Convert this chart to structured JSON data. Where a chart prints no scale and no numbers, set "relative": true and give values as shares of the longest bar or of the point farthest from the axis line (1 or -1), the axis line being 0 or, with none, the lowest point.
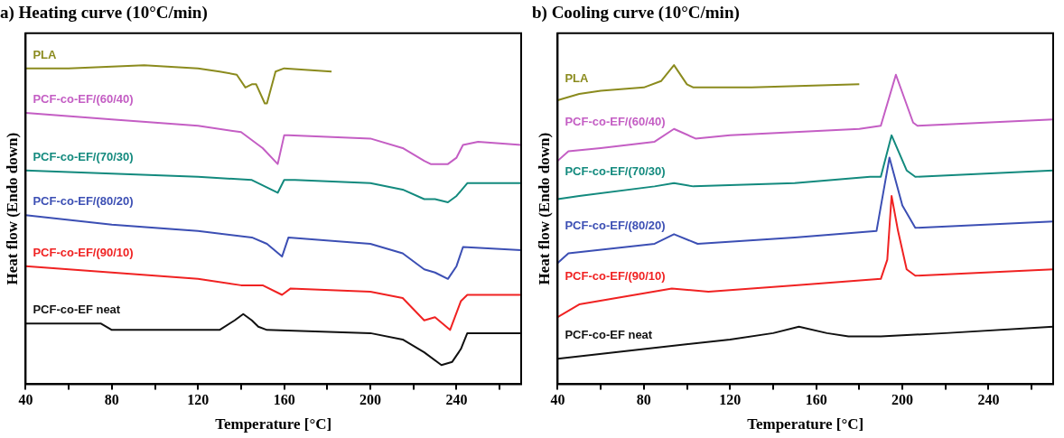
{
  "chart_data": [
    {
      "type": "line",
      "title": "a) Heating curve (10°C/min)",
      "xlabel": "Temperature [°C]",
      "ylabel": "Heat flow (Endo down)",
      "relative": true,
      "marker": "none",
      "line_style": "solid",
      "legend": false,
      "grid": false,
      "tick_labels": "x",
      "xlim": [
        40,
        270
      ],
      "xticks": [
        40,
        {
          "value": 60,
          "label": null
        },
        80,
        {
          "value": 100,
          "label": null
        },
        120,
        {
          "value": 140,
          "label": null
        },
        160,
        {
          "value": 180,
          "label": null
        },
        200,
        {
          "value": 220,
          "label": null
        },
        240,
        {
          "value": 260,
          "label": null
        }
      ],
      "series": [
        {
          "name": "PLA",
          "color": "#8b8b1e",
          "x": [
            40,
            55,
            60,
            95,
            120,
            130,
            138,
            142,
            145,
            147,
            151,
            152,
            156,
            160,
            182
          ],
          "values": [
            0.99,
            0.99,
            0.99,
            1,
            0.99,
            0.98,
            0.97,
            0.93,
            0.94,
            0.94,
            0.88,
            0.88,
            0.98,
            0.99,
            0.98
          ]
        },
        {
          "name": "PCF-co-EF/(60/40)",
          "color": "#c45ec4",
          "x": [
            40,
            80,
            120,
            140,
            150,
            157,
            160,
            162,
            200,
            215,
            225,
            228,
            232,
            236,
            240,
            243,
            250,
            270
          ],
          "values": [
            0.85,
            0.83,
            0.81,
            0.79,
            0.74,
            0.69,
            0.78,
            0.78,
            0.77,
            0.74,
            0.7,
            0.69,
            0.69,
            0.69,
            0.71,
            0.75,
            0.76,
            0.75
          ]
        },
        {
          "name": "PCF-co-EF/(70/30)",
          "color": "#138a7e",
          "x": [
            40,
            80,
            120,
            145,
            157,
            160,
            165,
            200,
            215,
            225,
            230,
            236,
            240,
            245,
            270
          ],
          "values": [
            0.67,
            0.66,
            0.65,
            0.64,
            0.6,
            0.64,
            0.64,
            0.63,
            0.61,
            0.58,
            0.58,
            0.57,
            0.59,
            0.63,
            0.63
          ]
        },
        {
          "name": "PCF-co-EF/(80/20)",
          "color": "#3c4fb4",
          "x": [
            40,
            80,
            120,
            145,
            152,
            159,
            162,
            200,
            215,
            225,
            230,
            236,
            240,
            243,
            270
          ],
          "values": [
            0.53,
            0.5,
            0.48,
            0.46,
            0.44,
            0.4,
            0.46,
            0.44,
            0.41,
            0.36,
            0.35,
            0.33,
            0.37,
            0.43,
            0.42
          ]
        },
        {
          "name": "PCF-co-EF/(90/10)",
          "color": "#f02222",
          "x": [
            40,
            80,
            120,
            140,
            150,
            159,
            163,
            200,
            215,
            225,
            230,
            237,
            242,
            245,
            270
          ],
          "values": [
            0.37,
            0.35,
            0.33,
            0.31,
            0.31,
            0.28,
            0.3,
            0.29,
            0.27,
            0.2,
            0.21,
            0.17,
            0.26,
            0.28,
            0.28
          ]
        },
        {
          "name": "PCF-co-EF neat",
          "color": "#111111",
          "x": [
            40,
            75,
            80,
            100,
            130,
            137,
            141,
            145,
            148,
            152,
            200,
            215,
            225,
            233,
            238,
            242,
            245,
            270
          ],
          "values": [
            0.19,
            0.19,
            0.17,
            0.17,
            0.17,
            0.2,
            0.22,
            0.2,
            0.18,
            0.17,
            0.16,
            0.14,
            0.1,
            0.06,
            0.07,
            0.11,
            0.16,
            0.16
          ]
        }
      ]
    },
    {
      "type": "line",
      "title": "b) Cooling curve (10°C/min)",
      "xlabel": "Temperature [°C]",
      "ylabel": "Heat flow (Endo down)",
      "relative": true,
      "marker": "none",
      "line_style": "solid",
      "legend": false,
      "grid": false,
      "tick_labels": "x",
      "xlim": [
        40,
        270
      ],
      "xticks": [
        40,
        {
          "value": 60,
          "label": null
        },
        80,
        {
          "value": 100,
          "label": null
        },
        120,
        {
          "value": 140,
          "label": null
        },
        160,
        {
          "value": 180,
          "label": null
        },
        200,
        {
          "value": 220,
          "label": null
        },
        240,
        {
          "value": 260,
          "label": null
        }
      ],
      "series": [
        {
          "name": "PLA",
          "color": "#8b8b1e",
          "x": [
            40,
            50,
            60,
            80,
            88,
            94,
            100,
            103,
            130,
            180
          ],
          "values": [
            0.89,
            0.91,
            0.92,
            0.93,
            0.95,
            1,
            0.94,
            0.93,
            0.93,
            0.94
          ]
        },
        {
          "name": "PCF-co-EF/(60/40)",
          "color": "#c45ec4",
          "x": [
            40,
            45,
            60,
            85,
            94,
            104,
            120,
            150,
            180,
            190,
            197,
            205,
            207,
            270
          ],
          "values": [
            0.7,
            0.73,
            0.74,
            0.76,
            0.8,
            0.77,
            0.78,
            0.79,
            0.8,
            0.81,
            0.97,
            0.82,
            0.81,
            0.83
          ]
        },
        {
          "name": "PCF-co-EF/(70/30)",
          "color": "#138a7e",
          "x": [
            40,
            50,
            85,
            94,
            103,
            150,
            185,
            190,
            195,
            202,
            206,
            270
          ],
          "values": [
            0.58,
            0.59,
            0.62,
            0.63,
            0.62,
            0.63,
            0.65,
            0.65,
            0.78,
            0.67,
            0.65,
            0.67
          ]
        },
        {
          "name": "PCF-co-EF/(80/20)",
          "color": "#3c4fb4",
          "x": [
            40,
            45,
            85,
            94,
            105,
            150,
            188,
            194,
            200,
            206,
            270
          ],
          "values": [
            0.38,
            0.41,
            0.44,
            0.47,
            0.44,
            0.46,
            0.48,
            0.71,
            0.56,
            0.49,
            0.51
          ]
        },
        {
          "name": "PCF-co-EF/(90/10)",
          "color": "#f02222",
          "x": [
            40,
            50,
            93,
            110,
            150,
            190,
            193,
            195,
            198,
            202,
            206,
            270
          ],
          "values": [
            0.21,
            0.25,
            0.3,
            0.29,
            0.31,
            0.33,
            0.39,
            0.59,
            0.48,
            0.36,
            0.34,
            0.36
          ]
        },
        {
          "name": "PCF-co-EF neat",
          "color": "#111111",
          "x": [
            40,
            80,
            120,
            140,
            152,
            165,
            175,
            190,
            220,
            270
          ],
          "values": [
            0.08,
            0.11,
            0.14,
            0.16,
            0.18,
            0.16,
            0.15,
            0.15,
            0.16,
            0.18
          ]
        }
      ]
    }
  ]
}
